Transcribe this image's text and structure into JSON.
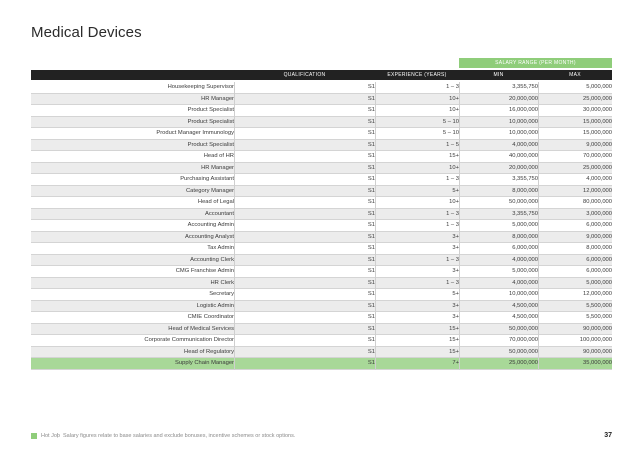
{
  "page": {
    "title": "Medical Devices"
  },
  "table": {
    "band_label": "SALARY RANGE (PER MONTH)",
    "headers": {
      "qualification": "QUALIFICATION",
      "experience": "EXPERIENCE (YEARS)",
      "min": "MIN",
      "max": "MAX"
    },
    "rows": [
      {
        "title": "Housekeeping Supervisor",
        "qualification": "S1",
        "experience": "1 – 3",
        "min": "3,355,750",
        "max": "5,000,000"
      },
      {
        "title": "HR Manager",
        "qualification": "S1",
        "experience": "10+",
        "min": "20,000,000",
        "max": "25,000,000"
      },
      {
        "title": "Product Specialist",
        "qualification": "S1",
        "experience": "10+",
        "min": "16,000,000",
        "max": "30,000,000"
      },
      {
        "title": "Product Specialist",
        "qualification": "S1",
        "experience": "5 – 10",
        "min": "10,000,000",
        "max": "15,000,000"
      },
      {
        "title": "Product Manager Immunology",
        "qualification": "S1",
        "experience": "5 – 10",
        "min": "10,000,000",
        "max": "15,000,000"
      },
      {
        "title": "Product Specialist",
        "qualification": "S1",
        "experience": "1 – 5",
        "min": "4,000,000",
        "max": "9,000,000"
      },
      {
        "title": "Head of HR",
        "qualification": "S1",
        "experience": "15+",
        "min": "40,000,000",
        "max": "70,000,000"
      },
      {
        "title": "HR Manager",
        "qualification": "S1",
        "experience": "10+",
        "min": "20,000,000",
        "max": "25,000,000"
      },
      {
        "title": "Purchasing Assistant",
        "qualification": "S1",
        "experience": "1 – 3",
        "min": "3,355,750",
        "max": "4,000,000"
      },
      {
        "title": "Category Manager",
        "qualification": "S1",
        "experience": "5+",
        "min": "8,000,000",
        "max": "12,000,000"
      },
      {
        "title": "Head of Legal",
        "qualification": "S1",
        "experience": "10+",
        "min": "50,000,000",
        "max": "80,000,000"
      },
      {
        "title": "Accountant",
        "qualification": "S1",
        "experience": "1 – 3",
        "min": "3,355,750",
        "max": "3,000,000"
      },
      {
        "title": "Accounting Admin",
        "qualification": "S1",
        "experience": "1 – 3",
        "min": "5,000,000",
        "max": "6,000,000"
      },
      {
        "title": "Accounting Analyst",
        "qualification": "S1",
        "experience": "3+",
        "min": "8,000,000",
        "max": "9,000,000"
      },
      {
        "title": "Tax Admin",
        "qualification": "S1",
        "experience": "3+",
        "min": "6,000,000",
        "max": "8,000,000"
      },
      {
        "title": "Accounting Clerk",
        "qualification": "S1",
        "experience": "1 – 3",
        "min": "4,000,000",
        "max": "6,000,000"
      },
      {
        "title": "CMG Franchise Admin",
        "qualification": "S1",
        "experience": "3+",
        "min": "5,000,000",
        "max": "6,000,000"
      },
      {
        "title": "HR Clerk",
        "qualification": "S1",
        "experience": "1 – 3",
        "min": "4,000,000",
        "max": "5,000,000"
      },
      {
        "title": "Secretary",
        "qualification": "S1",
        "experience": "5+",
        "min": "10,000,000",
        "max": "12,000,000"
      },
      {
        "title": "Logistic Admin",
        "qualification": "S1",
        "experience": "3+",
        "min": "4,500,000",
        "max": "5,500,000"
      },
      {
        "title": "CMIE Coordinator",
        "qualification": "S1",
        "experience": "3+",
        "min": "4,500,000",
        "max": "5,500,000"
      },
      {
        "title": "Head of Medical Services",
        "qualification": "S1",
        "experience": "15+",
        "min": "50,000,000",
        "max": "90,000,000"
      },
      {
        "title": "Corporate Communication Director",
        "qualification": "S1",
        "experience": "15+",
        "min": "70,000,000",
        "max": "100,000,000"
      },
      {
        "title": "Head of Regulatory",
        "qualification": "S1",
        "experience": "15+",
        "min": "50,000,000",
        "max": "90,000,000"
      },
      {
        "title": "Supply Chain Manager",
        "qualification": "S1",
        "experience": "7+",
        "min": "25,000,000",
        "max": "35,000,000"
      }
    ]
  },
  "footer": {
    "brand": "Hot Job",
    "separator": "|",
    "note": "Salary figures relate to base salaries and exclude bonuses, incentive schemes or stock options.",
    "page_number": "37"
  },
  "colors": {
    "accent": "#8fcd7a",
    "header": "#222222",
    "highlight": "#a8d898"
  }
}
